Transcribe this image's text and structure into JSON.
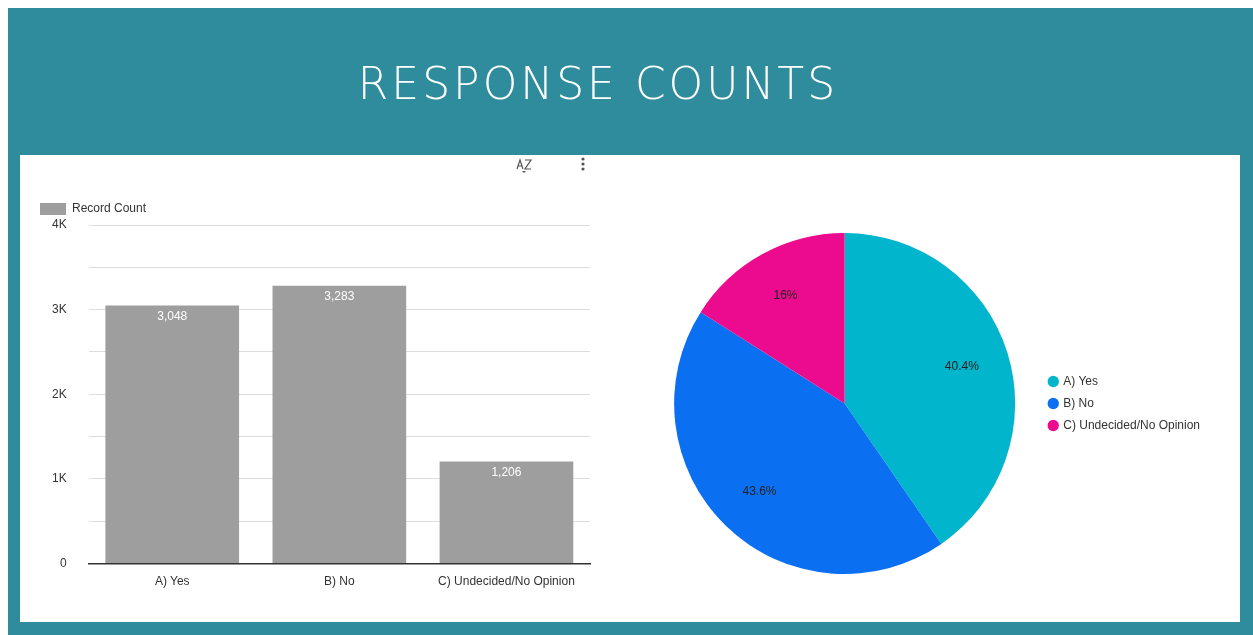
{
  "chart_data": [
    {
      "type": "bar",
      "title": "RESPONSE COUNTS",
      "categories": [
        "A) Yes",
        "B) No",
        "C) Undecided/No Opinion"
      ],
      "series": [
        {
          "name": "Record Count",
          "color": "#9e9e9e",
          "values": [
            3048,
            3283,
            1206
          ]
        }
      ],
      "value_labels": [
        "3,048",
        "3,283",
        "1,206"
      ],
      "ylim": [
        0,
        4000
      ],
      "yticks": [
        {
          "value": 0,
          "label": "0"
        },
        {
          "value": 500,
          "label": null
        },
        {
          "value": 1000,
          "label": "1K"
        },
        {
          "value": 1500,
          "label": null
        },
        {
          "value": 2000,
          "label": "2K"
        },
        {
          "value": 2500,
          "label": null
        },
        {
          "value": 3000,
          "label": "3K"
        },
        {
          "value": 3500,
          "label": null
        },
        {
          "value": 4000,
          "label": "4K"
        }
      ],
      "grid": "y",
      "legend": "top left"
    },
    {
      "type": "pie",
      "categories": [
        "A) Yes",
        "B) No",
        "C) Undecided/No Opinion"
      ],
      "values": [
        40.4,
        43.6,
        16
      ],
      "colors": [
        "#00b5cc",
        "#0a6ff0",
        "#ec0a8e"
      ],
      "value_labels": [
        "40.4%",
        "43.6%",
        "16%"
      ],
      "legend": "right"
    }
  ]
}
